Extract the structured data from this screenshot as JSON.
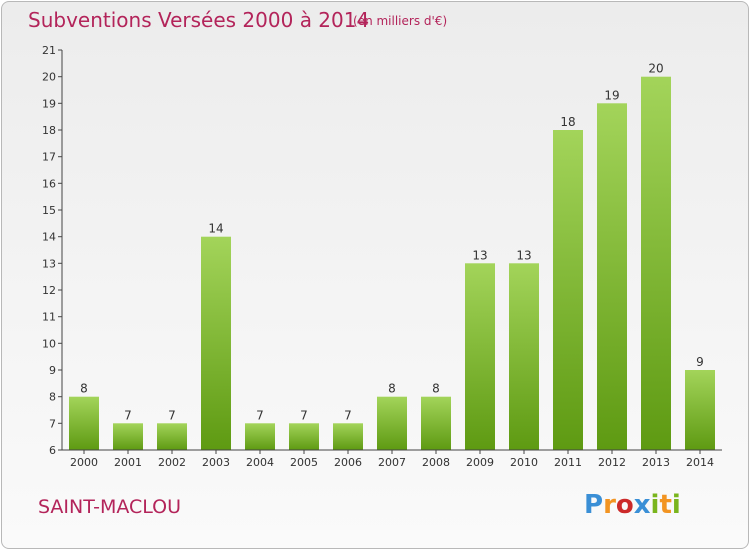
{
  "title": "Subventions Versées 2000 à 2014",
  "subtitle": "(en milliers d'€)",
  "commune": "SAINT-MACLOU",
  "logo": {
    "text": "Proxiti",
    "letters": [
      "P",
      "r",
      "o",
      "x",
      "i",
      "t",
      "i"
    ],
    "letter_colors": [
      "#3a8fd6",
      "#f29422",
      "#cc2a2a",
      "#3a8fd6",
      "#7ab51d",
      "#f29422",
      "#7ab51d"
    ]
  },
  "colors": {
    "title": "#b3245a",
    "bar_top": "#a3d45a",
    "bar_bottom": "#5e9a12",
    "axis": "#444444"
  },
  "chart_data": {
    "type": "bar",
    "title": "Subventions Versées 2000 à 2014",
    "subtitle": "(en milliers d'€)",
    "categories": [
      "2000",
      "2001",
      "2002",
      "2003",
      "2004",
      "2005",
      "2006",
      "2007",
      "2008",
      "2009",
      "2010",
      "2011",
      "2012",
      "2013",
      "2014"
    ],
    "values": [
      8,
      7,
      7,
      14,
      7,
      7,
      7,
      8,
      8,
      13,
      13,
      18,
      19,
      20,
      9
    ],
    "ylim": [
      6,
      21
    ],
    "yticks": [
      6,
      7,
      8,
      9,
      10,
      11,
      12,
      13,
      14,
      15,
      16,
      17,
      18,
      19,
      20,
      21
    ],
    "grid": false,
    "data_labels": true
  }
}
